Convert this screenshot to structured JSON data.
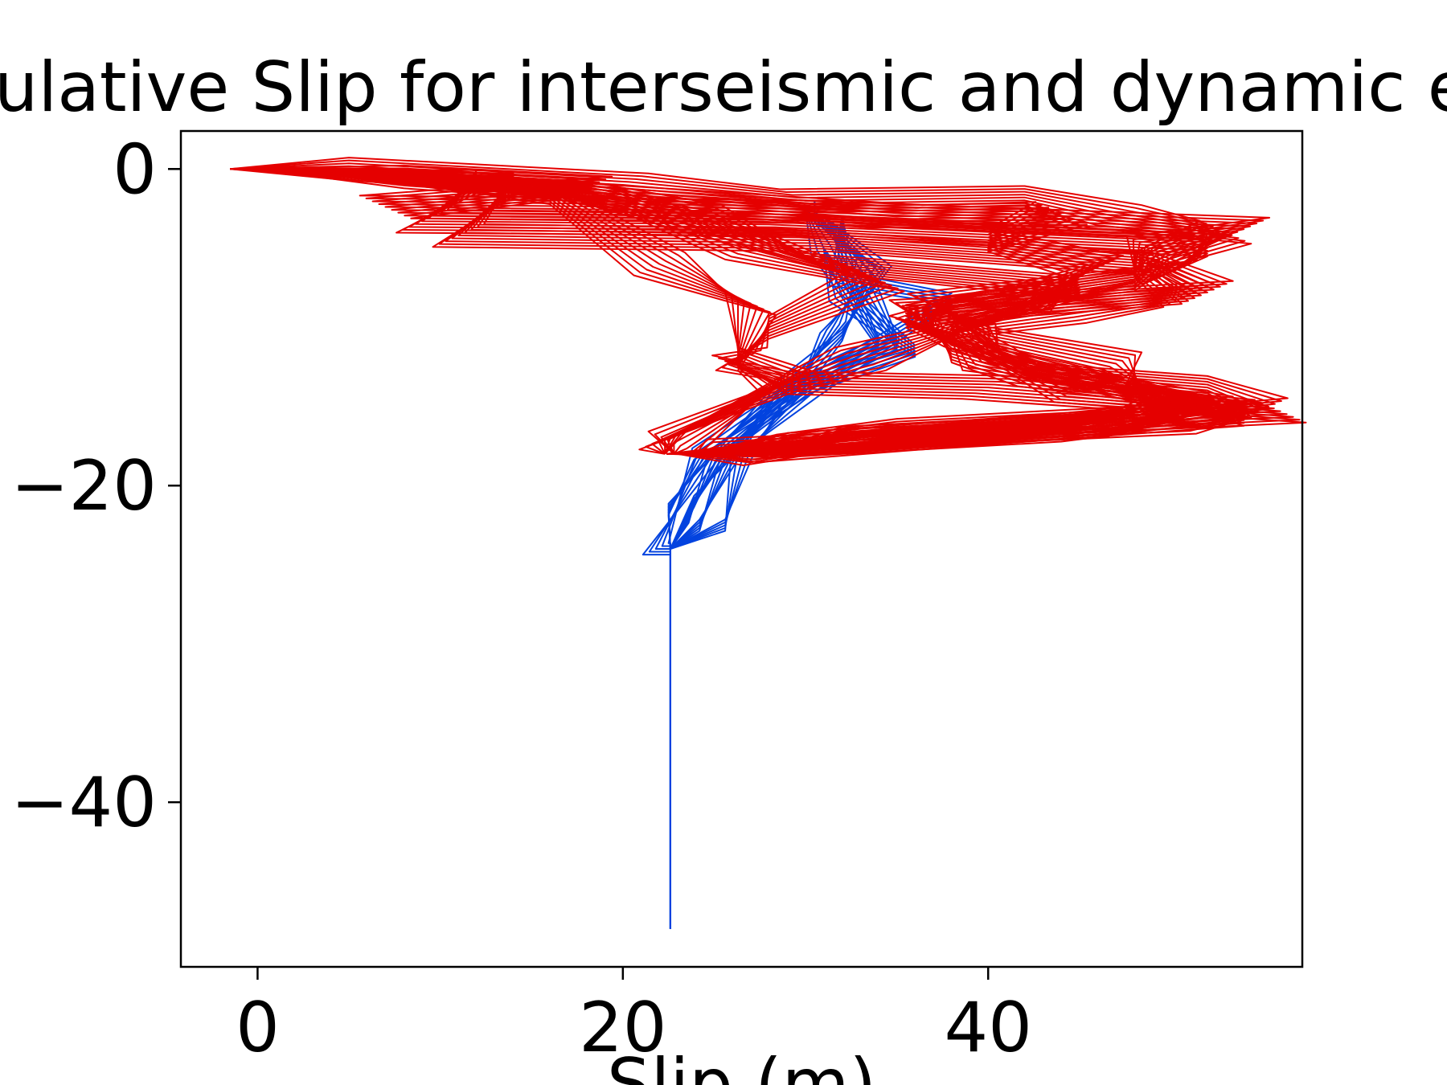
{
  "chart_data": {
    "type": "line",
    "title": "Cumulative Slip for interseismic and dynamic events",
    "xlabel": "Slip (m)",
    "ylabel": "",
    "xlim": [
      -4.2,
      57.2
    ],
    "ylim": [
      -50.4,
      2.4
    ],
    "x_ticks": [
      0,
      20,
      40
    ],
    "y_ticks": [
      0,
      -20,
      -40
    ],
    "x_tick_labels": [
      "0",
      "20",
      "40"
    ],
    "y_tick_labels": [
      "0",
      "−20",
      "−40"
    ],
    "grid": false,
    "legend": "none",
    "series": [
      {
        "color": "#0343df",
        "profiles": [
          [
            [
              22.6,
              -48
            ],
            [
              22.6,
              -24
            ],
            [
              21.8,
              -24
            ],
            [
              24.5,
              -18
            ],
            [
              29.6,
              -13.6
            ],
            [
              31.5,
              -10
            ],
            [
              33.5,
              -6
            ],
            [
              30.5,
              -3
            ],
            [
              30.5,
              -2
            ]
          ],
          [
            [
              22.6,
              -24
            ],
            [
              22.5,
              -21.5
            ],
            [
              24.6,
              -18
            ],
            [
              29.4,
              -13.5
            ],
            [
              32,
              -10.5
            ],
            [
              34,
              -6.5
            ],
            [
              31,
              -3
            ]
          ],
          [
            [
              22.6,
              -24
            ],
            [
              23.6,
              -22
            ],
            [
              25.3,
              -18
            ],
            [
              29.8,
              -13.7
            ],
            [
              35,
              -11
            ],
            [
              33,
              -7
            ],
            [
              31.5,
              -4
            ]
          ],
          [
            [
              22.6,
              -24
            ],
            [
              24.2,
              -22.5
            ],
            [
              26,
              -18
            ],
            [
              29.5,
              -13.8
            ],
            [
              36,
              -11.5
            ],
            [
              32,
              -8
            ],
            [
              31,
              -5
            ]
          ],
          [
            [
              22.6,
              -24
            ],
            [
              25.6,
              -22.5
            ],
            [
              26.6,
              -18
            ],
            [
              30,
              -14
            ],
            [
              38,
              -8.2
            ],
            [
              32,
              -7
            ],
            [
              32,
              -3
            ]
          ],
          [
            [
              22.6,
              -24
            ],
            [
              23.9,
              -21
            ],
            [
              25.8,
              -18
            ],
            [
              29,
              -14
            ],
            [
              34,
              -11
            ],
            [
              31,
              -5
            ],
            [
              30,
              -2.5
            ]
          ]
        ]
      },
      {
        "color": "#e50000",
        "profiles": [
          [
            [
              -1.5,
              0
            ],
            [
              5,
              0
            ],
            [
              20,
              -1
            ],
            [
              30,
              -2
            ],
            [
              42,
              -1.8
            ],
            [
              47,
              -3
            ],
            [
              53,
              -4
            ],
            [
              48,
              -6
            ],
            [
              51,
              -8
            ],
            [
              44,
              -9
            ],
            [
              38,
              -10
            ],
            [
              40,
              -12
            ],
            [
              44,
              -13
            ],
            [
              52,
              -13.8
            ],
            [
              55,
              -15.2
            ],
            [
              50,
              -16
            ],
            [
              32,
              -17
            ],
            [
              28,
              -18
            ],
            [
              23,
              -18
            ]
          ],
          [
            [
              0,
              0
            ],
            [
              8,
              -0.5
            ],
            [
              18,
              -1.2
            ],
            [
              7,
              -2.4
            ],
            [
              30,
              -2.7
            ],
            [
              54,
              -3.8
            ],
            [
              49,
              -5
            ],
            [
              48,
              -7
            ],
            [
              38,
              -8.5
            ],
            [
              36,
              -10
            ],
            [
              41,
              -12
            ],
            [
              45,
              -14
            ],
            [
              53,
              -15
            ],
            [
              44,
              -16.5
            ],
            [
              30,
              -17.5
            ],
            [
              22.4,
              -18
            ]
          ],
          [
            [
              1,
              0
            ],
            [
              12,
              -0.8
            ],
            [
              9,
              -3.3
            ],
            [
              28,
              -3.5
            ],
            [
              52,
              -4.8
            ],
            [
              50,
              -6.5
            ],
            [
              37,
              -8.6
            ],
            [
              40,
              -10.7
            ],
            [
              47,
              -12.3
            ],
            [
              49,
              -14.2
            ],
            [
              54,
              -15.5
            ],
            [
              40,
              -16.8
            ],
            [
              26,
              -17.8
            ],
            [
              24,
              -18
            ]
          ],
          [
            [
              2,
              0
            ],
            [
              14,
              -1
            ],
            [
              11,
              -4.2
            ],
            [
              30,
              -4.5
            ],
            [
              49,
              -6
            ],
            [
              52,
              -7.8
            ],
            [
              36,
              -9
            ],
            [
              38,
              -11.5
            ],
            [
              43,
              -13
            ],
            [
              51,
              -14.5
            ],
            [
              47,
              -16
            ],
            [
              34,
              -17
            ],
            [
              25,
              -18
            ]
          ],
          [
            [
              5,
              0
            ],
            [
              18,
              -1.5
            ],
            [
              24,
              -3
            ],
            [
              31,
              -6
            ],
            [
              45,
              -7.5
            ],
            [
              40,
              -9.5
            ],
            [
              33,
              -12
            ],
            [
              29.5,
              -13.3
            ],
            [
              22.3,
              -17
            ],
            [
              22.3,
              -18
            ]
          ],
          [
            [
              8,
              0
            ],
            [
              20,
              -2
            ],
            [
              27,
              -5
            ],
            [
              34,
              -7
            ],
            [
              28,
              -10
            ],
            [
              26.5,
              -12
            ],
            [
              26.3,
              -12.5
            ],
            [
              29,
              -13.5
            ],
            [
              40,
              -13.8
            ],
            [
              56,
              -15.3
            ],
            [
              35,
              -16.5
            ],
            [
              27,
              -17.5
            ],
            [
              24,
              -18
            ]
          ],
          [
            [
              3,
              0
            ],
            [
              16,
              -1.5
            ],
            [
              22,
              -6
            ],
            [
              27,
              -8.5
            ],
            [
              26.3,
              -12
            ],
            [
              29,
              -13.5
            ],
            [
              22.8,
              -17.3
            ],
            [
              22.8,
              -18
            ]
          ],
          [
            [
              6,
              0
            ],
            [
              19,
              -1.7
            ],
            [
              35,
              -3
            ],
            [
              44,
              -2.8
            ],
            [
              40,
              -4.5
            ],
            [
              46,
              -6.2
            ],
            [
              42,
              -8.3
            ],
            [
              35.5,
              -9.3
            ],
            [
              39,
              -10.5
            ],
            [
              42,
              -12.7
            ],
            [
              48,
              -14
            ],
            [
              52,
              -15.1
            ],
            [
              45,
              -16.2
            ],
            [
              29,
              -17.4
            ],
            [
              25.5,
              -18
            ]
          ]
        ]
      }
    ]
  }
}
